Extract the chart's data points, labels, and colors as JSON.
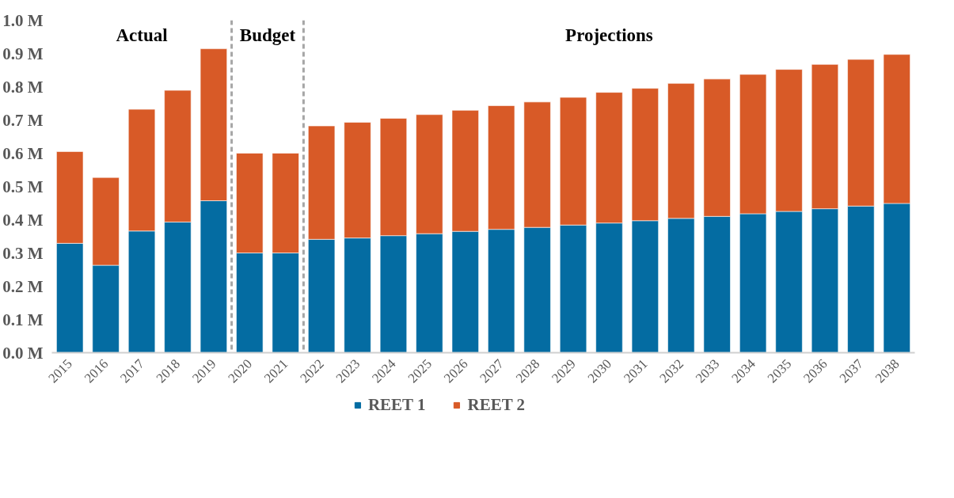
{
  "chart_data": {
    "type": "bar",
    "stacked": true,
    "categories": [
      "2015",
      "2016",
      "2017",
      "2018",
      "2019",
      "2020",
      "2021",
      "2022",
      "2023",
      "2024",
      "2025",
      "2026",
      "2027",
      "2028",
      "2029",
      "2030",
      "2031",
      "2032",
      "2033",
      "2034",
      "2035",
      "2036",
      "2037",
      "2038"
    ],
    "series": [
      {
        "name": "REET 1",
        "color": "#046ca2",
        "values": [
          0.329,
          0.263,
          0.366,
          0.393,
          0.457,
          0.3,
          0.3,
          0.341,
          0.345,
          0.352,
          0.358,
          0.365,
          0.371,
          0.377,
          0.384,
          0.39,
          0.397,
          0.404,
          0.41,
          0.418,
          0.425,
          0.433,
          0.441,
          0.449
        ]
      },
      {
        "name": "REET 2",
        "color": "#d85a27",
        "values": [
          0.276,
          0.264,
          0.366,
          0.396,
          0.457,
          0.3,
          0.3,
          0.341,
          0.348,
          0.353,
          0.358,
          0.364,
          0.372,
          0.377,
          0.384,
          0.393,
          0.398,
          0.406,
          0.413,
          0.419,
          0.427,
          0.434,
          0.441,
          0.448
        ]
      }
    ],
    "ylim": [
      0,
      1
    ],
    "yticks": [
      {
        "value": 0,
        "label": "0.0 M"
      },
      {
        "value": 0.1,
        "label": "0.1 M"
      },
      {
        "value": 0.2,
        "label": "0.2 M"
      },
      {
        "value": 0.3,
        "label": "0.3 M"
      },
      {
        "value": 0.4,
        "label": "0.4 M"
      },
      {
        "value": 0.5,
        "label": "0.5 M"
      },
      {
        "value": 0.6,
        "label": "0.6 M"
      },
      {
        "value": 0.7,
        "label": "0.7 M"
      },
      {
        "value": 0.8,
        "label": "0.8 M"
      },
      {
        "value": 0.9,
        "label": "0.9 M"
      },
      {
        "value": 1,
        "label": "1.0 M"
      }
    ],
    "annotations": [
      "Actual",
      "Budget",
      "Projections"
    ],
    "grid": false,
    "legend": "bottom"
  }
}
